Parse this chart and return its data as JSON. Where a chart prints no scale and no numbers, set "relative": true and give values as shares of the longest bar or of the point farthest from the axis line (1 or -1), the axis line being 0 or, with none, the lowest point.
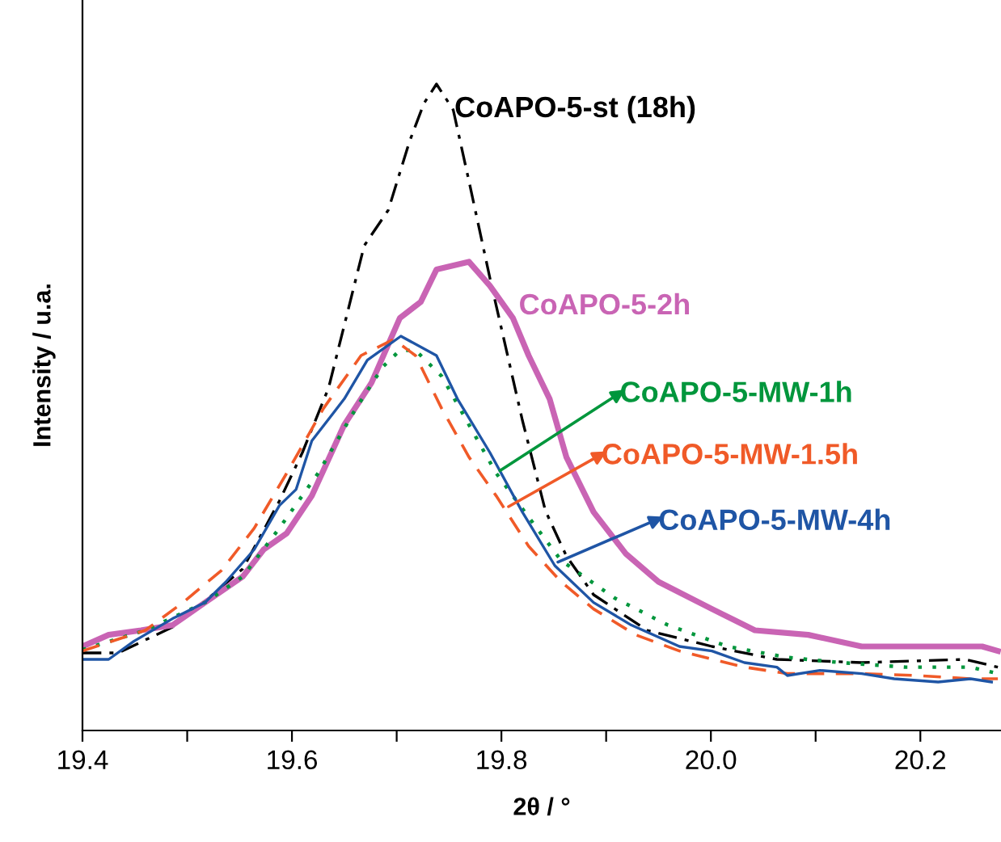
{
  "chart_data": {
    "type": "line",
    "xlabel": "2θ / °",
    "ylabel": "Intensity / u.a.",
    "relative": true,
    "tick_labels": "x",
    "grid": false,
    "legend": "right",
    "xlim": [
      19.4,
      20.277
    ],
    "xticks": [
      19.4,
      {
        "value": 19.5,
        "label": null
      },
      19.6,
      {
        "value": 19.7,
        "label": null
      },
      19.8,
      {
        "value": 19.9,
        "label": null
      },
      {
        "value": 20.0,
        "label": "20.0"
      },
      {
        "value": 20.1,
        "label": null
      },
      20.2
    ],
    "series": [
      {
        "name": "CoAPO-5-st (18h)",
        "color": "#000000",
        "line_style": "dashdot",
        "x": [
          19.4,
          19.434,
          19.486,
          19.517,
          19.553,
          19.588,
          19.61,
          19.635,
          19.669,
          19.692,
          19.712,
          19.726,
          19.738,
          19.754,
          19.769,
          19.789,
          19.82,
          19.842,
          19.862,
          19.888,
          19.939,
          20.001,
          20.063,
          20.144,
          20.243,
          20.274
        ],
        "values": [
          0.12,
          0.12,
          0.16,
          0.2,
          0.25,
          0.355,
          0.43,
          0.53,
          0.75,
          0.805,
          0.91,
          0.97,
          1.0,
          0.96,
          0.85,
          0.7,
          0.48,
          0.34,
          0.27,
          0.21,
          0.155,
          0.13,
          0.11,
          0.105,
          0.11,
          0.098
        ]
      },
      {
        "name": "CoAPO-5-2h",
        "color": "#c964b4",
        "line_style": "solid",
        "x": [
          19.4,
          19.425,
          19.456,
          19.486,
          19.517,
          19.553,
          19.573,
          19.595,
          19.619,
          19.65,
          19.676,
          19.703,
          19.723,
          19.738,
          19.769,
          19.789,
          19.811,
          19.826,
          19.846,
          19.862,
          19.888,
          19.919,
          19.95,
          20.001,
          20.042,
          20.093,
          20.144,
          20.197,
          20.259,
          20.274
        ],
        "values": [
          0.13,
          0.148,
          0.155,
          0.163,
          0.198,
          0.238,
          0.28,
          0.305,
          0.363,
          0.473,
          0.538,
          0.638,
          0.663,
          0.713,
          0.725,
          0.688,
          0.638,
          0.58,
          0.513,
          0.423,
          0.338,
          0.273,
          0.23,
          0.188,
          0.155,
          0.148,
          0.13,
          0.13,
          0.13,
          0.123
        ]
      },
      {
        "name": "CoAPO-5-MW-1h",
        "color": "#00963c",
        "line_style": "dotted",
        "x": [
          19.4,
          19.46,
          19.517,
          19.553,
          19.588,
          19.625,
          19.661,
          19.687,
          19.703,
          19.718,
          19.743,
          19.769,
          19.795,
          19.826,
          19.857,
          19.908,
          19.959,
          20.016,
          20.073,
          20.124,
          20.186,
          20.248,
          20.274
        ],
        "values": [
          0.125,
          0.155,
          0.198,
          0.238,
          0.313,
          0.398,
          0.498,
          0.563,
          0.588,
          0.588,
          0.548,
          0.473,
          0.398,
          0.33,
          0.263,
          0.205,
          0.163,
          0.13,
          0.113,
          0.105,
          0.098,
          0.098,
          0.088
        ]
      },
      {
        "name": "CoAPO-5-MW-1.5h",
        "color": "#f05a28",
        "line_style": "dashed",
        "x": [
          19.4,
          19.46,
          19.496,
          19.533,
          19.564,
          19.595,
          19.63,
          19.666,
          19.697,
          19.718,
          19.743,
          19.769,
          19.795,
          19.826,
          19.857,
          19.888,
          19.928,
          19.97,
          20.032,
          20.073,
          20.144,
          20.197,
          20.248,
          20.274
        ],
        "values": [
          0.123,
          0.155,
          0.198,
          0.248,
          0.313,
          0.398,
          0.498,
          0.58,
          0.605,
          0.58,
          0.498,
          0.423,
          0.363,
          0.285,
          0.23,
          0.188,
          0.148,
          0.123,
          0.098,
          0.088,
          0.088,
          0.085,
          0.08,
          0.08
        ]
      },
      {
        "name": "CoAPO-5-MW-4h",
        "color": "#1f55a5",
        "line_style": "solid",
        "x": [
          19.4,
          19.425,
          19.449,
          19.486,
          19.517,
          19.537,
          19.564,
          19.588,
          19.604,
          19.619,
          19.65,
          19.672,
          19.704,
          19.738,
          19.758,
          19.789,
          19.82,
          19.851,
          19.888,
          19.924,
          19.97,
          20.001,
          20.032,
          20.063,
          20.073,
          20.104,
          20.144,
          20.175,
          20.217,
          20.248,
          20.268
        ],
        "values": [
          0.11,
          0.11,
          0.138,
          0.173,
          0.198,
          0.23,
          0.28,
          0.348,
          0.373,
          0.448,
          0.513,
          0.573,
          0.61,
          0.58,
          0.513,
          0.43,
          0.338,
          0.255,
          0.198,
          0.163,
          0.13,
          0.123,
          0.105,
          0.098,
          0.085,
          0.093,
          0.088,
          0.08,
          0.075,
          0.08,
          0.075
        ]
      }
    ]
  }
}
